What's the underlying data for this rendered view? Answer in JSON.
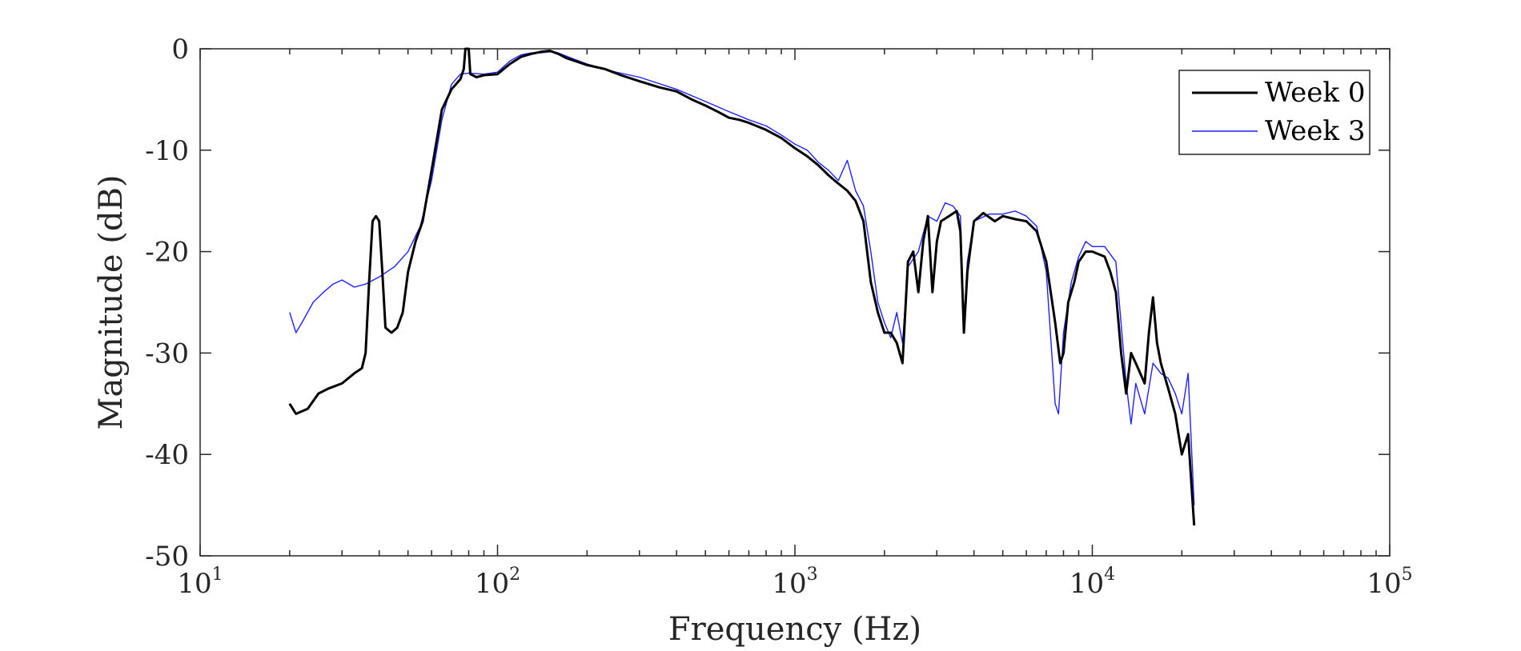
{
  "chart_data": {
    "type": "line",
    "title": "",
    "xlabel": "Frequency (Hz)",
    "ylabel": "Magnitude (dB)",
    "xscale": "log",
    "xlim": [
      10,
      100000
    ],
    "ylim": [
      -50,
      0
    ],
    "yticks": [
      0,
      -10,
      -20,
      -30,
      -40,
      -50
    ],
    "ytick_labels": [
      "0",
      "-10",
      "-20",
      "-30",
      "-40",
      "-50"
    ],
    "xtick_exponents": [
      1,
      2,
      3,
      4,
      5
    ],
    "xtick_base": "10",
    "grid": false,
    "legend": {
      "location": "top-right",
      "entries": [
        "Week 0",
        "Week 3"
      ]
    },
    "series": [
      {
        "name": "Week 0",
        "color": "#000000",
        "points": [
          [
            20,
            -35
          ],
          [
            21,
            -36
          ],
          [
            23,
            -35.5
          ],
          [
            25,
            -34
          ],
          [
            27,
            -33.5
          ],
          [
            30,
            -33
          ],
          [
            33,
            -32
          ],
          [
            35,
            -31.5
          ],
          [
            36,
            -30
          ],
          [
            37,
            -23
          ],
          [
            38,
            -17
          ],
          [
            39,
            -16.5
          ],
          [
            40,
            -17
          ],
          [
            41,
            -22
          ],
          [
            42,
            -27.5
          ],
          [
            44,
            -28
          ],
          [
            46,
            -27.5
          ],
          [
            48,
            -26
          ],
          [
            50,
            -22
          ],
          [
            53,
            -19
          ],
          [
            56,
            -17
          ],
          [
            60,
            -12
          ],
          [
            65,
            -6
          ],
          [
            70,
            -4
          ],
          [
            75,
            -3
          ],
          [
            77,
            -2
          ],
          [
            78,
            0
          ],
          [
            80,
            0
          ],
          [
            81,
            -2.5
          ],
          [
            85,
            -2.8
          ],
          [
            90,
            -2.6
          ],
          [
            100,
            -2.5
          ],
          [
            110,
            -1.5
          ],
          [
            120,
            -0.8
          ],
          [
            130,
            -0.5
          ],
          [
            140,
            -0.3
          ],
          [
            150,
            -0.2
          ],
          [
            160,
            -0.5
          ],
          [
            170,
            -0.9
          ],
          [
            200,
            -1.6
          ],
          [
            230,
            -2
          ],
          [
            260,
            -2.6
          ],
          [
            300,
            -3.2
          ],
          [
            350,
            -3.8
          ],
          [
            400,
            -4.2
          ],
          [
            450,
            -5
          ],
          [
            500,
            -5.6
          ],
          [
            550,
            -6.2
          ],
          [
            600,
            -6.8
          ],
          [
            650,
            -7
          ],
          [
            700,
            -7.3
          ],
          [
            800,
            -8
          ],
          [
            900,
            -8.8
          ],
          [
            1000,
            -9.8
          ],
          [
            1100,
            -10.6
          ],
          [
            1200,
            -11.5
          ],
          [
            1300,
            -12.5
          ],
          [
            1400,
            -13.3
          ],
          [
            1500,
            -14
          ],
          [
            1600,
            -15
          ],
          [
            1700,
            -17
          ],
          [
            1800,
            -23
          ],
          [
            1900,
            -26
          ],
          [
            2000,
            -28
          ],
          [
            2100,
            -28
          ],
          [
            2200,
            -29
          ],
          [
            2300,
            -31
          ],
          [
            2400,
            -21
          ],
          [
            2500,
            -20
          ],
          [
            2600,
            -24
          ],
          [
            2700,
            -19
          ],
          [
            2800,
            -16.5
          ],
          [
            2900,
            -24
          ],
          [
            3000,
            -19
          ],
          [
            3100,
            -17
          ],
          [
            3300,
            -16.5
          ],
          [
            3500,
            -16
          ],
          [
            3600,
            -18
          ],
          [
            3700,
            -28
          ],
          [
            3800,
            -22
          ],
          [
            4000,
            -17
          ],
          [
            4300,
            -16.2
          ],
          [
            4700,
            -17
          ],
          [
            5000,
            -16.5
          ],
          [
            5500,
            -16.8
          ],
          [
            6000,
            -17
          ],
          [
            6500,
            -18
          ],
          [
            7000,
            -21
          ],
          [
            7500,
            -27
          ],
          [
            7800,
            -31
          ],
          [
            8000,
            -30
          ],
          [
            8300,
            -25
          ],
          [
            8700,
            -23
          ],
          [
            9000,
            -21
          ],
          [
            9500,
            -20
          ],
          [
            10000,
            -20
          ],
          [
            11000,
            -20.5
          ],
          [
            11500,
            -22
          ],
          [
            12000,
            -24
          ],
          [
            12500,
            -30
          ],
          [
            13000,
            -34
          ],
          [
            13500,
            -30
          ],
          [
            14000,
            -31
          ],
          [
            15000,
            -33
          ],
          [
            15500,
            -28
          ],
          [
            16000,
            -24.5
          ],
          [
            16500,
            -29
          ],
          [
            17000,
            -31
          ],
          [
            18000,
            -33.5
          ],
          [
            19000,
            -36
          ],
          [
            20000,
            -40
          ],
          [
            21000,
            -38
          ],
          [
            22000,
            -47
          ]
        ]
      },
      {
        "name": "Week 3",
        "color": "#1f1fff",
        "points": [
          [
            20,
            -26
          ],
          [
            21,
            -28
          ],
          [
            22,
            -27
          ],
          [
            24,
            -25
          ],
          [
            26,
            -24
          ],
          [
            28,
            -23.2
          ],
          [
            30,
            -22.8
          ],
          [
            33,
            -23.5
          ],
          [
            36,
            -23.2
          ],
          [
            40,
            -22.5
          ],
          [
            45,
            -21.5
          ],
          [
            50,
            -20
          ],
          [
            55,
            -17.5
          ],
          [
            60,
            -13
          ],
          [
            65,
            -7
          ],
          [
            70,
            -3.5
          ],
          [
            75,
            -2.5
          ],
          [
            80,
            -2.4
          ],
          [
            90,
            -2.5
          ],
          [
            100,
            -2.3
          ],
          [
            110,
            -1.2
          ],
          [
            120,
            -0.6
          ],
          [
            130,
            -0.4
          ],
          [
            140,
            -0.4
          ],
          [
            150,
            -0.3
          ],
          [
            160,
            -0.4
          ],
          [
            180,
            -1
          ],
          [
            200,
            -1.5
          ],
          [
            250,
            -2.3
          ],
          [
            300,
            -2.8
          ],
          [
            400,
            -4
          ],
          [
            500,
            -5.2
          ],
          [
            600,
            -6.2
          ],
          [
            700,
            -7
          ],
          [
            800,
            -7.6
          ],
          [
            900,
            -8.5
          ],
          [
            1000,
            -9.4
          ],
          [
            1100,
            -10
          ],
          [
            1200,
            -11.2
          ],
          [
            1300,
            -12
          ],
          [
            1400,
            -13
          ],
          [
            1500,
            -11
          ],
          [
            1600,
            -14
          ],
          [
            1700,
            -15.5
          ],
          [
            1800,
            -20
          ],
          [
            1900,
            -25
          ],
          [
            2000,
            -27
          ],
          [
            2100,
            -28.5
          ],
          [
            2200,
            -26
          ],
          [
            2300,
            -29
          ],
          [
            2400,
            -21.5
          ],
          [
            2600,
            -20
          ],
          [
            2800,
            -16.5
          ],
          [
            3000,
            -17
          ],
          [
            3200,
            -15.2
          ],
          [
            3400,
            -15.5
          ],
          [
            3600,
            -16.5
          ],
          [
            3700,
            -27
          ],
          [
            3800,
            -21
          ],
          [
            4000,
            -17
          ],
          [
            4500,
            -16.3
          ],
          [
            5000,
            -16.3
          ],
          [
            5500,
            -16
          ],
          [
            6000,
            -16.5
          ],
          [
            6500,
            -17.5
          ],
          [
            7000,
            -22
          ],
          [
            7500,
            -35
          ],
          [
            7700,
            -36
          ],
          [
            8000,
            -28
          ],
          [
            8500,
            -23
          ],
          [
            9000,
            -20.5
          ],
          [
            9500,
            -19
          ],
          [
            10000,
            -19.5
          ],
          [
            11000,
            -19.5
          ],
          [
            12000,
            -21
          ],
          [
            13000,
            -33
          ],
          [
            13500,
            -37
          ],
          [
            14000,
            -33
          ],
          [
            15000,
            -36
          ],
          [
            16000,
            -31
          ],
          [
            17000,
            -32
          ],
          [
            18000,
            -32.5
          ],
          [
            19000,
            -34
          ],
          [
            20000,
            -36
          ],
          [
            21000,
            -32
          ],
          [
            22000,
            -45
          ]
        ]
      }
    ]
  }
}
